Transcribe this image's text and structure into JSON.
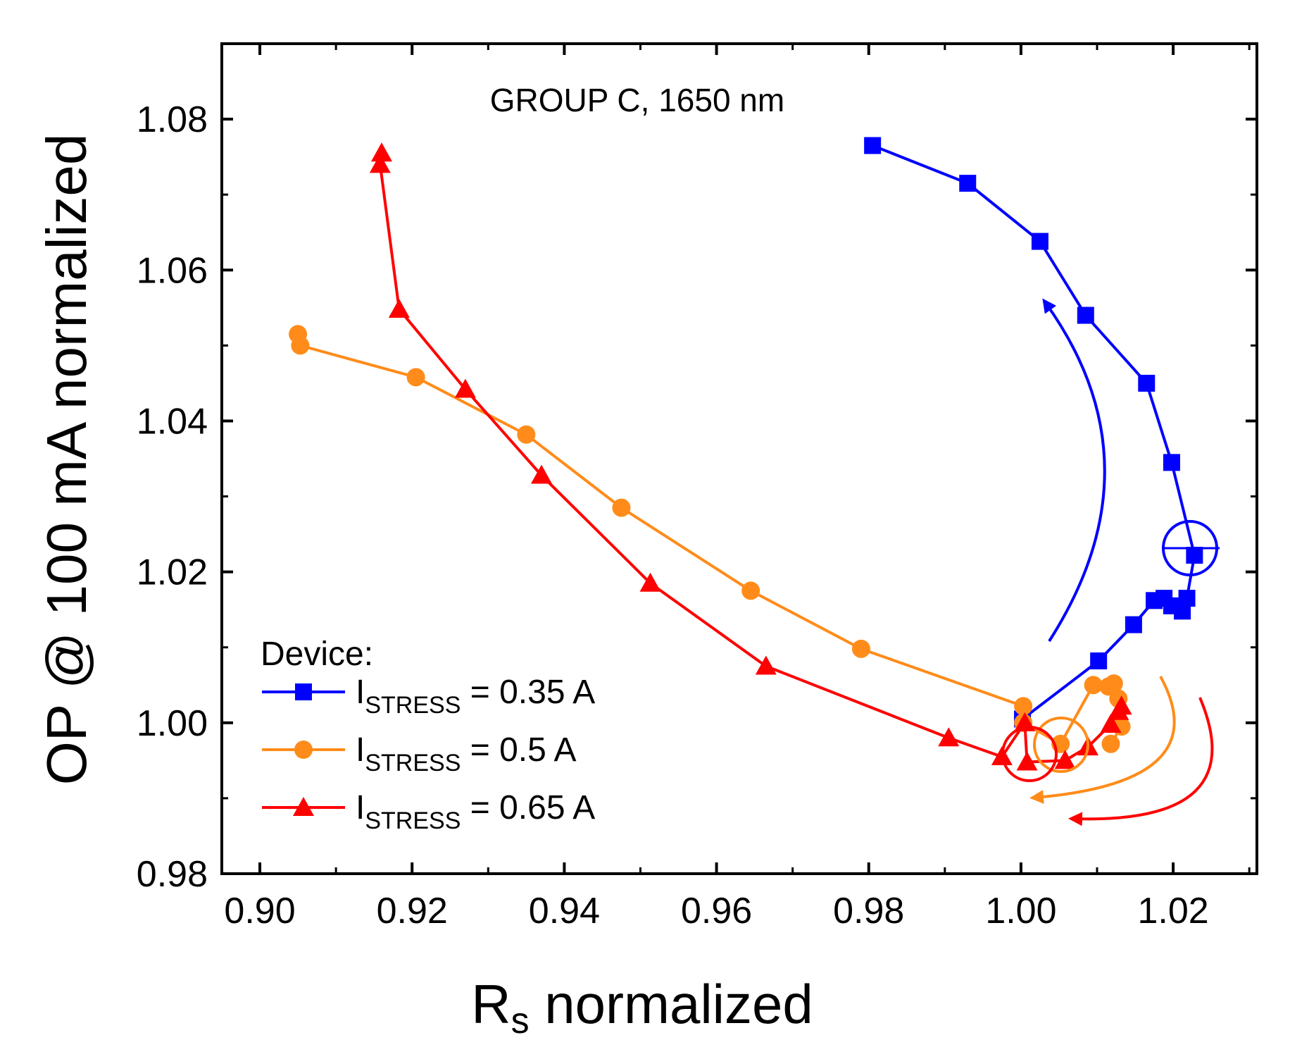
{
  "chart_data": {
    "type": "line",
    "annotation": "GROUP C, 1650 nm",
    "xlabel_main": "R",
    "xlabel_sub": "s",
    "xlabel_rest": " normalized",
    "ylabel": "OP @ 100 mA normalized",
    "xlim": [
      0.895,
      1.031
    ],
    "ylim": [
      0.98,
      1.09
    ],
    "x_ticks": [
      0.9,
      0.92,
      0.94,
      0.96,
      0.98,
      1.0,
      1.02
    ],
    "x_tick_labels": [
      "0.90",
      "0.92",
      "0.94",
      "0.96",
      "0.98",
      "1.00",
      "1.02"
    ],
    "y_ticks": [
      0.98,
      1.0,
      1.02,
      1.04,
      1.06,
      1.08
    ],
    "y_tick_labels": [
      "0.98",
      "1.00",
      "1.02",
      "1.04",
      "1.06",
      "1.08"
    ],
    "legend": {
      "title": "Device:",
      "position": "bottom-left",
      "prefix": "I",
      "sub": "STRESS"
    },
    "series": [
      {
        "name": "I_STRESS = 0.35 A",
        "legend_value": " = 0.35 A",
        "color": "#0000ff",
        "marker": "square",
        "x": [
          0.9805,
          0.993,
          1.0025,
          1.0085,
          1.0165,
          1.0198,
          1.0228,
          1.0218,
          1.0212,
          1.0198,
          1.0188,
          1.0175,
          1.0148,
          1.0102,
          1.0002
        ],
        "y": [
          1.0765,
          1.0715,
          1.0638,
          1.054,
          1.045,
          1.0345,
          1.0222,
          1.0165,
          1.0148,
          1.0155,
          1.0165,
          1.0162,
          1.013,
          1.0082,
          1.0005
        ]
      },
      {
        "name": "I_STRESS = 0.5 A",
        "legend_value": " = 0.5 A",
        "color": "#ff8c1a",
        "marker": "circle",
        "x": [
          0.905,
          0.9053,
          0.9205,
          0.935,
          0.9475,
          0.9645,
          0.979,
          1.0003,
          1.0003,
          1.0052,
          1.0095,
          1.0115,
          1.0122,
          1.0128,
          1.0132,
          1.0118
        ],
        "y": [
          1.0515,
          1.05,
          1.0458,
          1.0382,
          1.0285,
          1.0175,
          1.0098,
          1.0022,
          1.0,
          0.9972,
          1.005,
          1.0048,
          1.0052,
          1.0032,
          0.9995,
          0.9972
        ]
      },
      {
        "name": "I_STRESS = 0.65 A",
        "legend_value": " = 0.65 A",
        "color": "#ff0000",
        "marker": "triangle",
        "x": [
          0.916,
          0.9158,
          0.9183,
          0.927,
          0.937,
          0.9513,
          0.9665,
          0.9905,
          0.9975,
          1.0005,
          1.0008,
          1.0058,
          1.0088,
          1.0118,
          1.0128,
          1.0132
        ],
        "y": [
          1.0755,
          1.074,
          1.0548,
          1.0442,
          1.0328,
          1.0185,
          1.0075,
          0.998,
          0.9955,
          1.0,
          0.9948,
          0.995,
          0.9968,
          0.9998,
          1.0015,
          1.0022
        ]
      }
    ]
  }
}
